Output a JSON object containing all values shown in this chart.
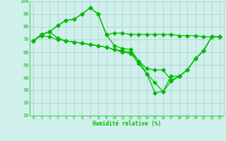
{
  "x": [
    0,
    1,
    2,
    3,
    4,
    5,
    6,
    7,
    8,
    9,
    10,
    11,
    12,
    13,
    14,
    15,
    16,
    17,
    18,
    19,
    20,
    21,
    22,
    23
  ],
  "series1": [
    69,
    74,
    76,
    81,
    85,
    86,
    90,
    95,
    90,
    74,
    75,
    75,
    74,
    74,
    74,
    74,
    74,
    74,
    73,
    73,
    73,
    72,
    72,
    72
  ],
  "series2": [
    69,
    74,
    76,
    81,
    85,
    86,
    90,
    95,
    90,
    74,
    65,
    63,
    62,
    53,
    47,
    46,
    46,
    38,
    41,
    46,
    55,
    61,
    72,
    72
  ],
  "series3": [
    69,
    74,
    76,
    71,
    69,
    68,
    67,
    66,
    65,
    64,
    62,
    61,
    60,
    53,
    43,
    36,
    29,
    41,
    41,
    46,
    55,
    61,
    72,
    72
  ],
  "series4": [
    69,
    73,
    72,
    70,
    69,
    68,
    67,
    66,
    65,
    64,
    62,
    60,
    59,
    51,
    43,
    28,
    29,
    37,
    41,
    46,
    55,
    61,
    72,
    72
  ],
  "line_color": "#00bb00",
  "bg_color": "#d0f0ec",
  "grid_color": "#aacccc",
  "xlabel": "Humidité relative (%)",
  "ylim": [
    10,
    100
  ],
  "xlim": [
    -0.5,
    23.5
  ],
  "yticks": [
    10,
    20,
    30,
    40,
    50,
    60,
    70,
    80,
    90,
    100
  ],
  "xticks": [
    0,
    1,
    2,
    3,
    4,
    5,
    6,
    7,
    8,
    9,
    10,
    11,
    12,
    13,
    14,
    15,
    16,
    17,
    18,
    19,
    20,
    21,
    22,
    23
  ]
}
